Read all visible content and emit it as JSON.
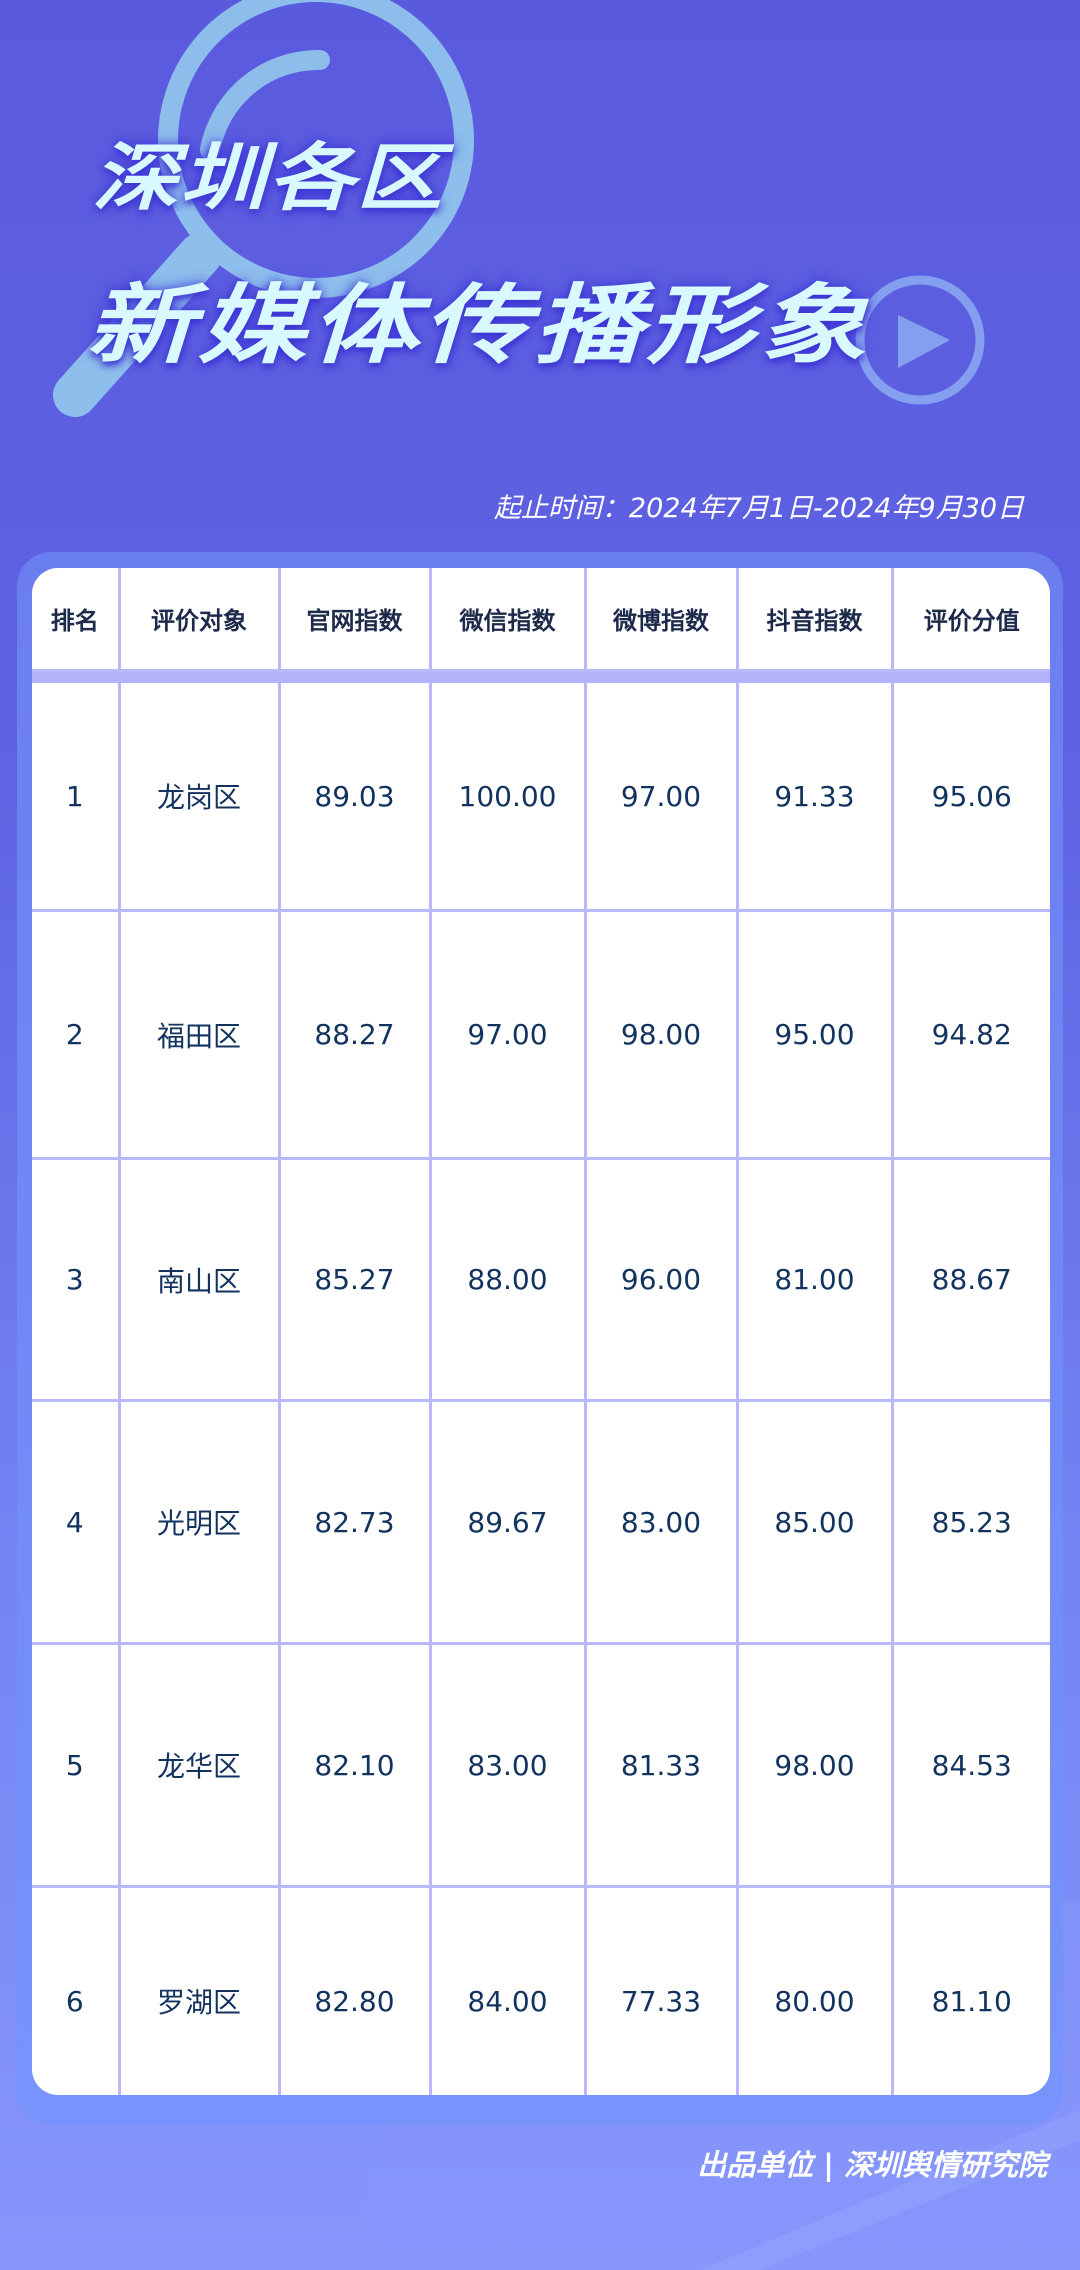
{
  "title": {
    "line1": "深圳各区",
    "line2": "新媒体传播形象"
  },
  "date_range": "起止时间：2024年7月1日-2024年9月30日",
  "table": {
    "headers": [
      "排名",
      "评价对象",
      "官网指数",
      "微信指数",
      "微博指数",
      "抖音指数",
      "评价分值"
    ],
    "rows": [
      [
        "1",
        "龙岗区",
        "89.03",
        "100.00",
        "97.00",
        "91.33",
        "95.06"
      ],
      [
        "2",
        "福田区",
        "88.27",
        "97.00",
        "98.00",
        "95.00",
        "94.82"
      ],
      [
        "3",
        "南山区",
        "85.27",
        "88.00",
        "96.00",
        "81.00",
        "88.67"
      ],
      [
        "4",
        "光明区",
        "82.73",
        "89.67",
        "83.00",
        "85.00",
        "85.23"
      ],
      [
        "5",
        "龙华区",
        "82.10",
        "83.00",
        "81.33",
        "98.00",
        "84.53"
      ],
      [
        "6",
        "罗湖区",
        "82.80",
        "84.00",
        "77.33",
        "80.00",
        "81.10"
      ]
    ]
  },
  "footer": "出品单位 | 深圳舆情研究院",
  "colors": {
    "background": "#5a5ade",
    "title": "#d8f9ff",
    "table_text": "#13335f",
    "grid": "#b8b8fb"
  },
  "icons": [
    "magnifier-icon",
    "play-icon"
  ]
}
